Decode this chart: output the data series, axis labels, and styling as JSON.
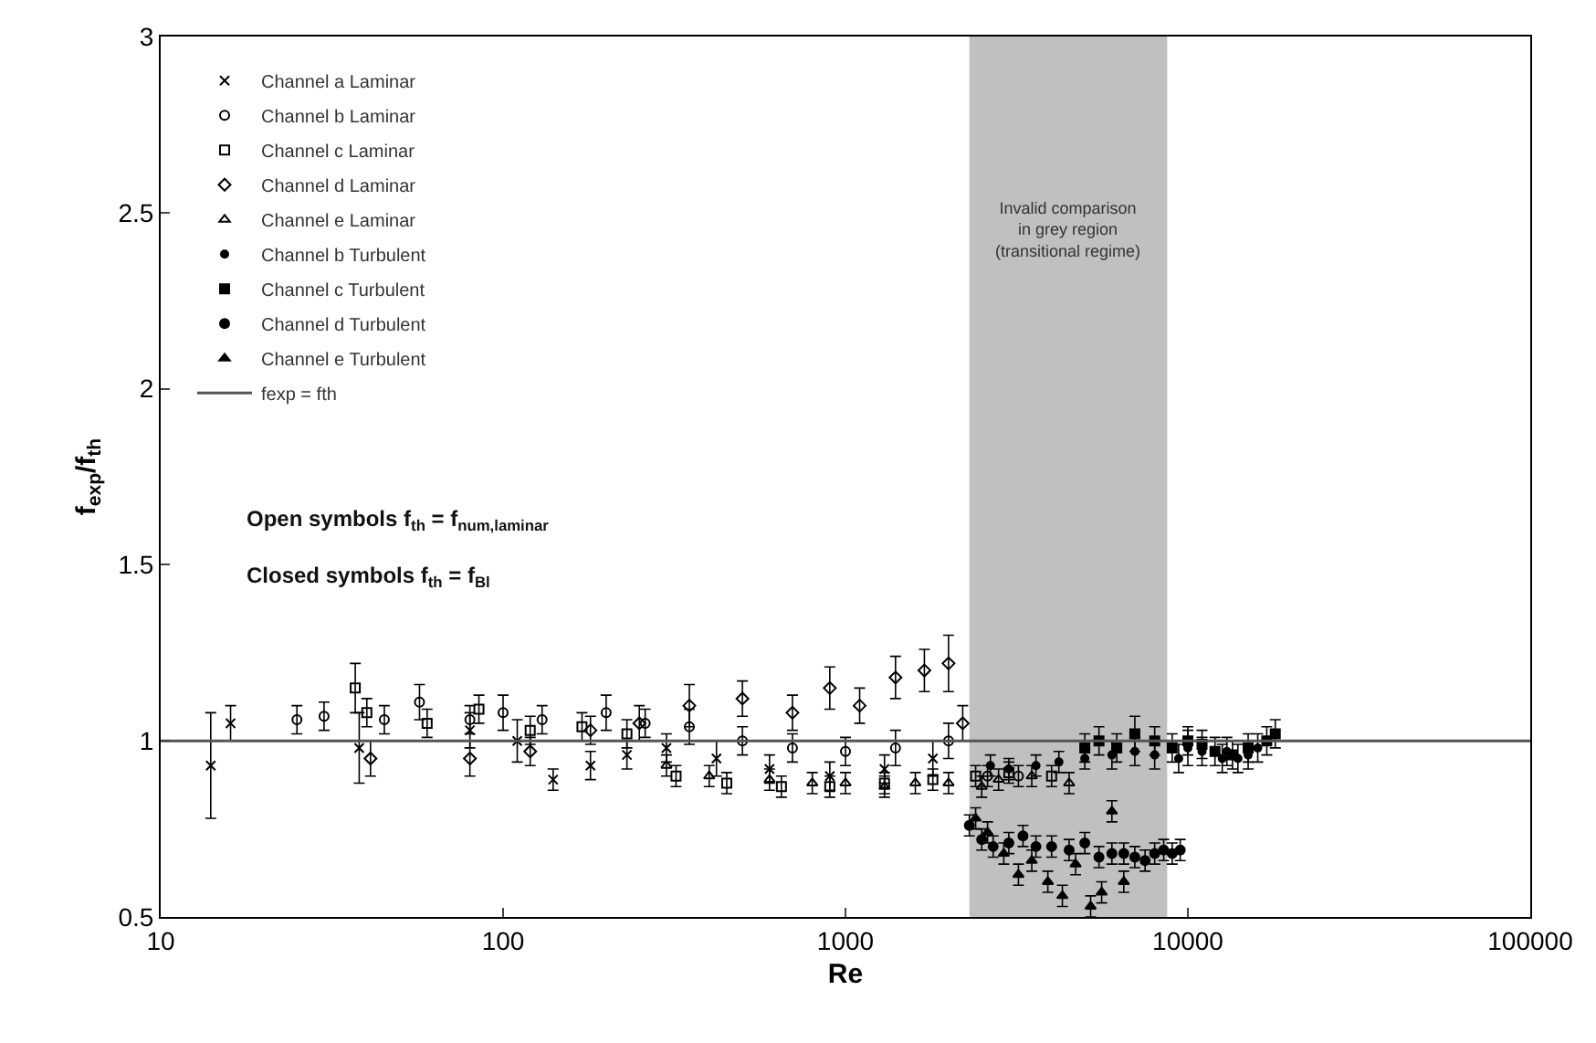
{
  "chart_data": {
    "type": "scatter",
    "xlabel": "Re",
    "ylabel": "f$_{exp}$/f$_{th}$",
    "log": "x",
    "xlim": [
      10,
      100000
    ],
    "xticks": [
      10,
      100,
      1000,
      10000,
      100000
    ],
    "ylim": [
      0.5,
      3
    ],
    "yticks": [
      0.5,
      1,
      1.5,
      2,
      2.5,
      3
    ],
    "grid": false,
    "legend": "top left",
    "annotations": [
      "Open symbols f$_{th}$ = f$_{num,laminar}$",
      "Closed symbols f$_{th}$ = f$_{Bl}$"
    ],
    "bands": [
      {
        "axis": "x",
        "from": 2300,
        "to": 8700,
        "label": "Invalid comparison\nin grey region\n(transitional regime)",
        "color": "#c0c0c0"
      }
    ],
    "series": [
      {
        "name": "Channel a Laminar",
        "color": "#000000",
        "marker": "cross",
        "x": [
          14,
          16,
          38,
          80,
          110,
          140,
          180,
          230,
          300,
          420,
          600,
          900,
          1300,
          1800
        ],
        "values": [
          0.93,
          1.05,
          0.98,
          1.03,
          1.0,
          0.89,
          0.93,
          0.96,
          0.98,
          0.95,
          0.92,
          0.9,
          0.92,
          0.95
        ],
        "errors": [
          0.15,
          0.05,
          0.1,
          0.05,
          0.06,
          0.03,
          0.04,
          0.04,
          0.04,
          0.05,
          0.04,
          0.04,
          0.04,
          0.05
        ]
      },
      {
        "name": "Channel b Laminar",
        "color": "#000000",
        "marker": "circle",
        "x": [
          25,
          30,
          45,
          57,
          80,
          100,
          130,
          200,
          260,
          350,
          500,
          700,
          1000,
          1400,
          2000,
          2600,
          3200
        ],
        "values": [
          1.06,
          1.07,
          1.06,
          1.11,
          1.06,
          1.08,
          1.06,
          1.08,
          1.05,
          1.04,
          1.0,
          0.98,
          0.97,
          0.98,
          1.0,
          0.9,
          0.9
        ],
        "errors": [
          0.04,
          0.04,
          0.04,
          0.05,
          0.04,
          0.05,
          0.04,
          0.05,
          0.04,
          0.05,
          0.04,
          0.04,
          0.04,
          0.05,
          0.05,
          0.03,
          0.03
        ]
      },
      {
        "name": "Channel c Laminar",
        "color": "#000000",
        "marker": "square",
        "x": [
          37,
          40,
          60,
          85,
          120,
          170,
          230,
          320,
          450,
          650,
          900,
          1300,
          1800,
          2400,
          3000,
          4000
        ],
        "values": [
          1.15,
          1.08,
          1.05,
          1.09,
          1.03,
          1.04,
          1.02,
          0.9,
          0.88,
          0.87,
          0.87,
          0.88,
          0.89,
          0.9,
          0.91,
          0.9
        ],
        "errors": [
          0.07,
          0.04,
          0.04,
          0.04,
          0.04,
          0.04,
          0.04,
          0.03,
          0.03,
          0.03,
          0.03,
          0.03,
          0.03,
          0.03,
          0.03,
          0.03
        ]
      },
      {
        "name": "Channel d Laminar",
        "color": "#000000",
        "marker": "diamond",
        "x": [
          41,
          80,
          120,
          180,
          250,
          350,
          500,
          700,
          900,
          1100,
          1400,
          1700,
          2000,
          2200
        ],
        "values": [
          0.95,
          0.95,
          0.97,
          1.03,
          1.05,
          1.1,
          1.12,
          1.08,
          1.15,
          1.1,
          1.18,
          1.2,
          1.22,
          1.05
        ],
        "errors": [
          0.05,
          0.05,
          0.04,
          0.04,
          0.05,
          0.06,
          0.05,
          0.05,
          0.06,
          0.05,
          0.06,
          0.06,
          0.08,
          0.05
        ]
      },
      {
        "name": "Channel e Laminar",
        "color": "#000000",
        "marker": "triangle",
        "x": [
          300,
          400,
          600,
          800,
          1000,
          1300,
          1600,
          2000,
          2500,
          2800,
          3500,
          4500
        ],
        "values": [
          0.93,
          0.9,
          0.89,
          0.88,
          0.88,
          0.87,
          0.88,
          0.88,
          0.87,
          0.89,
          0.9,
          0.88
        ],
        "errors": [
          0.03,
          0.03,
          0.03,
          0.03,
          0.03,
          0.03,
          0.03,
          0.03,
          0.03,
          0.03,
          0.03,
          0.03
        ]
      },
      {
        "name": "Channel b Turbulent",
        "color": "#000000",
        "marker": "circle",
        "x": [
          2650,
          3000,
          3600,
          4200,
          5000,
          6000,
          7000,
          8000,
          9400,
          10000,
          11000,
          12600,
          13000,
          14000,
          15000,
          16000
        ],
        "values": [
          0.93,
          0.92,
          0.93,
          0.94,
          0.95,
          0.96,
          0.97,
          0.96,
          0.95,
          0.98,
          0.97,
          0.95,
          0.97,
          0.95,
          0.96,
          0.98
        ],
        "errors": [
          0.03,
          0.03,
          0.03,
          0.03,
          0.03,
          0.04,
          0.04,
          0.04,
          0.04,
          0.05,
          0.04,
          0.04,
          0.04,
          0.04,
          0.04,
          0.04
        ]
      },
      {
        "name": "Channel c Turbulent",
        "color": "#000000",
        "marker": "square",
        "x": [
          5000,
          5500,
          6200,
          7000,
          8000,
          9000,
          10000,
          11000,
          12000,
          13500,
          15000,
          17000,
          18000
        ],
        "values": [
          0.98,
          1.0,
          0.98,
          1.02,
          1.0,
          0.98,
          1.0,
          0.99,
          0.97,
          0.96,
          0.98,
          1.0,
          1.02
        ],
        "errors": [
          0.04,
          0.04,
          0.04,
          0.05,
          0.04,
          0.04,
          0.04,
          0.04,
          0.04,
          0.04,
          0.04,
          0.04,
          0.04
        ]
      },
      {
        "name": "Channel d Turbulent",
        "color": "#000000",
        "marker": "circle",
        "x": [
          2300,
          2500,
          2700,
          3000,
          3300,
          3600,
          4000,
          4500,
          5000,
          5500,
          6000,
          6500,
          7000,
          7500,
          8000,
          8500,
          9000,
          9500
        ],
        "values": [
          0.76,
          0.72,
          0.7,
          0.71,
          0.73,
          0.7,
          0.7,
          0.69,
          0.71,
          0.67,
          0.68,
          0.68,
          0.67,
          0.66,
          0.68,
          0.69,
          0.68,
          0.69
        ],
        "errors": [
          0.03,
          0.03,
          0.03,
          0.03,
          0.03,
          0.03,
          0.03,
          0.03,
          0.03,
          0.03,
          0.03,
          0.03,
          0.03,
          0.03,
          0.03,
          0.03,
          0.03,
          0.03
        ]
      },
      {
        "name": "Channel e Turbulent",
        "color": "#000000",
        "marker": "triangle",
        "x": [
          2400,
          2600,
          2900,
          3200,
          3500,
          3900,
          4300,
          4700,
          5200,
          5600,
          6000,
          6500
        ],
        "values": [
          0.78,
          0.74,
          0.68,
          0.62,
          0.66,
          0.6,
          0.56,
          0.65,
          0.53,
          0.57,
          0.8,
          0.6
        ],
        "errors": [
          0.03,
          0.03,
          0.03,
          0.03,
          0.03,
          0.03,
          0.03,
          0.03,
          0.03,
          0.03,
          0.03,
          0.03
        ]
      },
      {
        "name": "fexp = fth",
        "type": "line",
        "color": "#555555",
        "x": [
          10,
          100000
        ],
        "values": [
          1,
          1
        ]
      }
    ]
  }
}
